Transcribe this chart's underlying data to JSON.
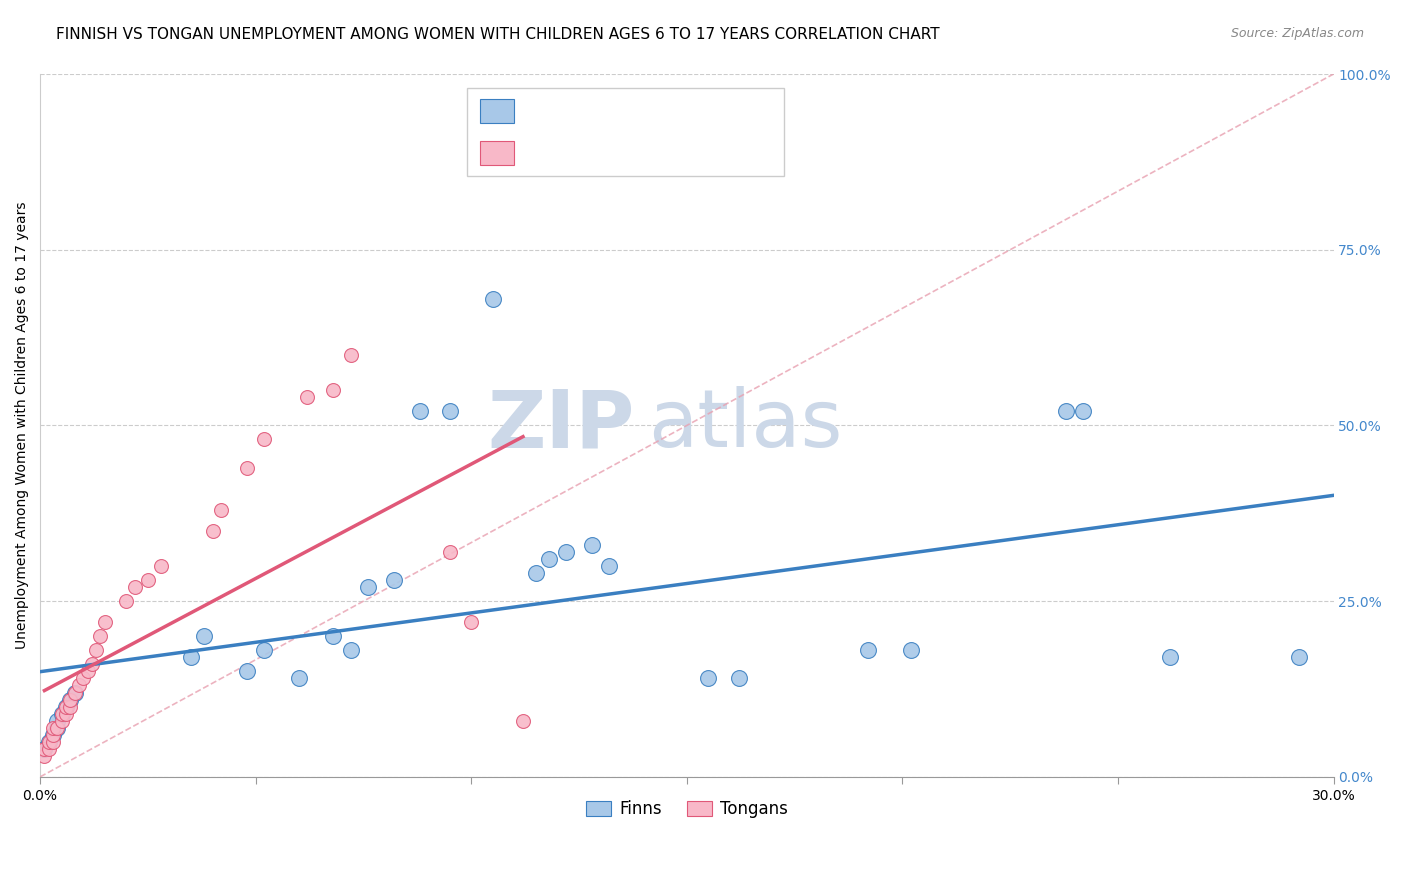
{
  "title": "FINNISH VS TONGAN UNEMPLOYMENT AMONG WOMEN WITH CHILDREN AGES 6 TO 17 YEARS CORRELATION CHART",
  "source": "Source: ZipAtlas.com",
  "ylabel": "Unemployment Among Women with Children Ages 6 to 17 years",
  "xlim": [
    0.0,
    0.3
  ],
  "ylim": [
    0.0,
    1.0
  ],
  "xticks": [
    0.0,
    0.05,
    0.1,
    0.15,
    0.2,
    0.25,
    0.3
  ],
  "xticklabels": [
    "0.0%",
    "",
    "",
    "",
    "",
    "",
    "30.0%"
  ],
  "yticks_right": [
    0.0,
    0.25,
    0.5,
    0.75,
    1.0
  ],
  "yticklabels_right": [
    "0.0%",
    "25.0%",
    "50.0%",
    "75.0%",
    "100.0%"
  ],
  "color_finns": "#a8c8e8",
  "color_tongans": "#f8b8c8",
  "color_line_finns": "#3a7fc1",
  "color_line_tongans": "#e05878",
  "color_r_text": "#4488cc",
  "color_n_text": "#cc3333",
  "watermark_zip": "ZIP",
  "watermark_atlas": "atlas",
  "watermark_color": "#ccd8e8",
  "grid_color": "#cccccc",
  "diag_line_color": "#e8a0b0",
  "title_fontsize": 11,
  "source_fontsize": 9,
  "label_fontsize": 10,
  "tick_fontsize": 10,
  "legend_fontsize": 12,
  "finns_x": [
    0.001,
    0.002,
    0.003,
    0.004,
    0.004,
    0.005,
    0.006,
    0.007,
    0.008,
    0.035,
    0.038,
    0.048,
    0.052,
    0.06,
    0.068,
    0.072,
    0.076,
    0.082,
    0.088,
    0.095,
    0.105,
    0.115,
    0.118,
    0.122,
    0.128,
    0.132,
    0.155,
    0.162,
    0.192,
    0.202,
    0.238,
    0.242,
    0.262,
    0.292
  ],
  "finns_y": [
    0.04,
    0.05,
    0.06,
    0.07,
    0.08,
    0.09,
    0.1,
    0.11,
    0.12,
    0.17,
    0.2,
    0.15,
    0.18,
    0.14,
    0.2,
    0.18,
    0.27,
    0.28,
    0.52,
    0.52,
    0.68,
    0.29,
    0.31,
    0.32,
    0.33,
    0.3,
    0.14,
    0.14,
    0.18,
    0.18,
    0.52,
    0.52,
    0.17,
    0.17
  ],
  "tongans_x": [
    0.001,
    0.001,
    0.002,
    0.002,
    0.003,
    0.003,
    0.003,
    0.004,
    0.005,
    0.005,
    0.006,
    0.006,
    0.007,
    0.007,
    0.008,
    0.009,
    0.01,
    0.011,
    0.012,
    0.013,
    0.014,
    0.015,
    0.02,
    0.022,
    0.025,
    0.028,
    0.04,
    0.042,
    0.048,
    0.052,
    0.062,
    0.068,
    0.072,
    0.095,
    0.1,
    0.112
  ],
  "tongans_y": [
    0.03,
    0.04,
    0.04,
    0.05,
    0.05,
    0.06,
    0.07,
    0.07,
    0.08,
    0.09,
    0.09,
    0.1,
    0.1,
    0.11,
    0.12,
    0.13,
    0.14,
    0.15,
    0.16,
    0.18,
    0.2,
    0.22,
    0.25,
    0.27,
    0.28,
    0.3,
    0.35,
    0.38,
    0.44,
    0.48,
    0.54,
    0.55,
    0.6,
    0.32,
    0.22,
    0.08
  ]
}
